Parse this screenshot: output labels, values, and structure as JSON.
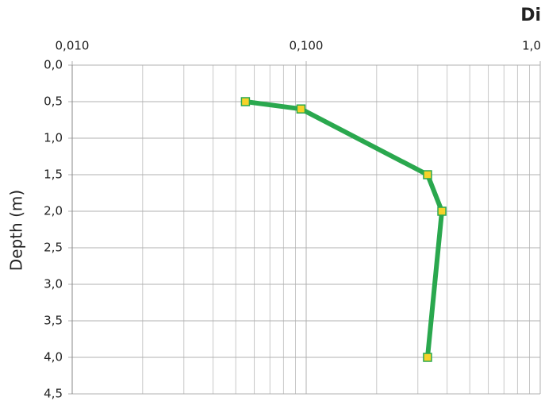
{
  "chart_data": {
    "type": "line",
    "title": "Di",
    "y_label": "Depth (m)",
    "x_scale": "log",
    "y_inverted": true,
    "grid": true,
    "minor_grid": true,
    "xlim": [
      0.01,
      1
    ],
    "xticks": [
      {
        "value": 0.01,
        "label": "0,010"
      },
      {
        "value": 0.1,
        "label": "0,100"
      },
      {
        "value": 1,
        "label": "1,0"
      }
    ],
    "ylim": [
      0,
      4.5
    ],
    "yticks": [
      {
        "value": 0,
        "label": "0,0"
      },
      {
        "value": 0.5,
        "label": "0,5"
      },
      {
        "value": 1,
        "label": "1,0"
      },
      {
        "value": 1.5,
        "label": "1,5"
      },
      {
        "value": 2,
        "label": "2,0"
      },
      {
        "value": 2.5,
        "label": "2,5"
      },
      {
        "value": 3,
        "label": "3,0"
      },
      {
        "value": 3.5,
        "label": "3,5"
      },
      {
        "value": 4,
        "label": "4,0"
      },
      {
        "value": 4.5,
        "label": "4,5"
      }
    ],
    "series": [
      {
        "color": "#2aa84e",
        "marker_color": "#f6d32a",
        "x": [
          0.055,
          0.095,
          0.33,
          0.38,
          0.33
        ],
        "values": [
          0.5,
          0.6,
          1.5,
          2.0,
          4.0
        ]
      }
    ]
  }
}
